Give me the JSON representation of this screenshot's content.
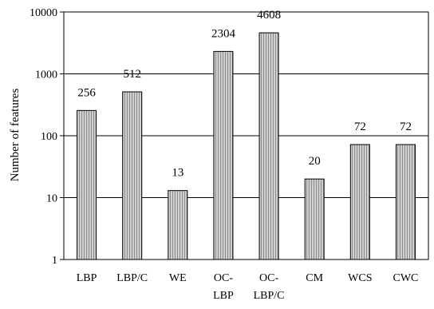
{
  "chart_data": {
    "type": "bar",
    "categories": [
      [
        "LBP"
      ],
      [
        "LBP/C"
      ],
      [
        "WE"
      ],
      [
        "OC-",
        "LBP"
      ],
      [
        "OC-",
        "LBP/C"
      ],
      [
        "CM"
      ],
      [
        "WCS"
      ],
      [
        "CWC"
      ]
    ],
    "values": [
      256,
      512,
      13,
      2304,
      4608,
      20,
      72,
      72
    ],
    "data_labels": [
      "256",
      "512",
      "13",
      "2304",
      "4608",
      "20",
      "72",
      "72"
    ],
    "title": "",
    "xlabel": "",
    "ylabel": "Number of features",
    "yscale": "log",
    "ylim": [
      1,
      10000
    ],
    "yticks": [
      1,
      10,
      100,
      1000,
      10000
    ],
    "ytick_labels": [
      "1",
      "10",
      "100",
      "1000",
      "10000"
    ],
    "grid": "horizontal",
    "legend": "none",
    "bar_fill": "#c8c8c8",
    "bar_stripe": "#8a8a8a",
    "bar_edge": "#000000"
  }
}
